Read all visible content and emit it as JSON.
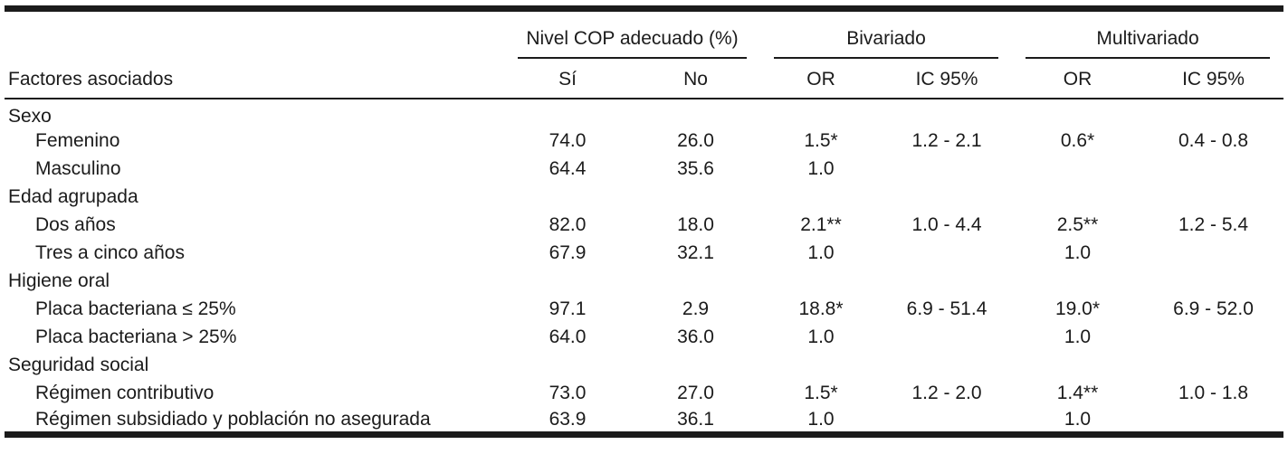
{
  "table": {
    "col1_header": "Factores asociados",
    "groups": [
      {
        "label": "Nivel COP adecuado (%)",
        "cols": [
          "Sí",
          "No"
        ]
      },
      {
        "label": "Bivariado",
        "cols": [
          "OR",
          "IC 95%"
        ]
      },
      {
        "label": "Multivariado",
        "cols": [
          "OR",
          "IC 95%"
        ]
      }
    ],
    "sections": [
      {
        "label": "Sexo",
        "rows": [
          {
            "label": "Femenino",
            "values": [
              "74.0",
              "26.0",
              "1.5*",
              "1.2 - 2.1",
              "0.6*",
              "0.4 - 0.8"
            ]
          },
          {
            "label": "Masculino",
            "values": [
              "64.4",
              "35.6",
              "1.0",
              "",
              "",
              ""
            ]
          }
        ]
      },
      {
        "label": "Edad agrupada",
        "rows": [
          {
            "label": "Dos años",
            "values": [
              "82.0",
              "18.0",
              "2.1**",
              "1.0 - 4.4",
              "2.5**",
              "1.2 - 5.4"
            ]
          },
          {
            "label": "Tres a cinco años",
            "values": [
              "67.9",
              "32.1",
              "1.0",
              "",
              "1.0",
              ""
            ]
          }
        ]
      },
      {
        "label": "Higiene oral",
        "rows": [
          {
            "label": "Placa bacteriana ≤ 25%",
            "values": [
              "97.1",
              "2.9",
              "18.8*",
              "6.9 - 51.4",
              "19.0*",
              "6.9 - 52.0"
            ]
          },
          {
            "label": "Placa bacteriana > 25%",
            "values": [
              "64.0",
              "36.0",
              "1.0",
              "",
              "1.0",
              ""
            ]
          }
        ]
      },
      {
        "label": "Seguridad social",
        "rows": [
          {
            "label": "Régimen contributivo",
            "values": [
              "73.0",
              "27.0",
              "1.5*",
              "1.2 - 2.0",
              "1.4**",
              "1.0 - 1.8"
            ]
          },
          {
            "label": "Régimen subsidiado y población no asegurada",
            "values": [
              "63.9",
              "36.1",
              "1.0",
              "",
              "1.0",
              ""
            ]
          }
        ]
      }
    ]
  },
  "colors": {
    "text": "#1b1b1b",
    "rule": "#1b1b1b",
    "background": "#ffffff"
  },
  "chart_data": {
    "type": "table",
    "title": "",
    "columns": [
      "Factores asociados",
      "Nivel COP adecuado (%) Sí",
      "Nivel COP adecuado (%) No",
      "Bivariado OR",
      "Bivariado IC 95%",
      "Multivariado OR",
      "Multivariado IC 95%"
    ],
    "rows": [
      [
        "Sexo",
        "",
        "",
        "",
        "",
        "",
        ""
      ],
      [
        "Femenino",
        "74.0",
        "26.0",
        "1.5*",
        "1.2 - 2.1",
        "0.6*",
        "0.4 - 0.8"
      ],
      [
        "Masculino",
        "64.4",
        "35.6",
        "1.0",
        "",
        "",
        ""
      ],
      [
        "Edad agrupada",
        "",
        "",
        "",
        "",
        "",
        ""
      ],
      [
        "Dos años",
        "82.0",
        "18.0",
        "2.1**",
        "1.0 - 4.4",
        "2.5**",
        "1.2 - 5.4"
      ],
      [
        "Tres a cinco años",
        "67.9",
        "32.1",
        "1.0",
        "",
        "1.0",
        ""
      ],
      [
        "Higiene oral",
        "",
        "",
        "",
        "",
        "",
        ""
      ],
      [
        "Placa bacteriana ≤ 25%",
        "97.1",
        "2.9",
        "18.8*",
        "6.9 - 51.4",
        "19.0*",
        "6.9 - 52.0"
      ],
      [
        "Placa bacteriana > 25%",
        "64.0",
        "36.0",
        "1.0",
        "",
        "1.0",
        ""
      ],
      [
        "Seguridad social",
        "",
        "",
        "",
        "",
        "",
        ""
      ],
      [
        "Régimen contributivo",
        "73.0",
        "27.0",
        "1.5*",
        "1.2 - 2.0",
        "1.4**",
        "1.0 - 1.8"
      ],
      [
        "Régimen subsidiado y población no asegurada",
        "63.9",
        "36.1",
        "1.0",
        "",
        "1.0",
        ""
      ]
    ]
  }
}
